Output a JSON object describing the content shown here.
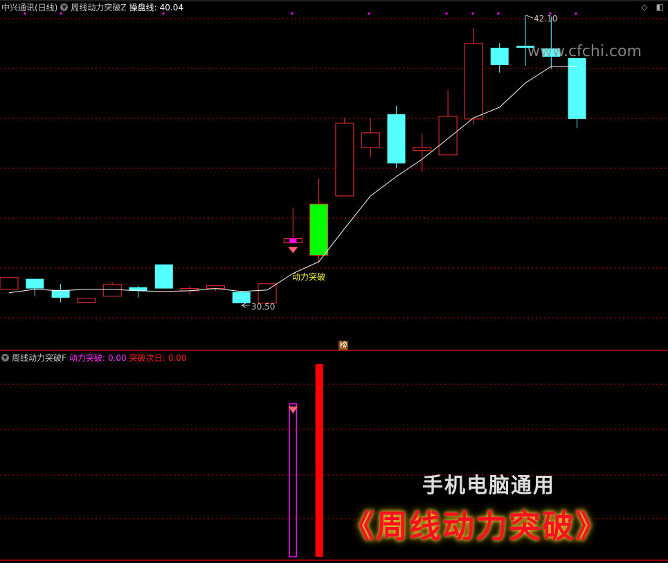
{
  "header": {
    "stock": "中兴通讯(日线)",
    "indicator": "周线动力突破Z",
    "line_label": "操盘线:",
    "line_value": "40.04"
  },
  "subpanel": {
    "indicator": "周线动力突破F",
    "signal_label": "动力突破:",
    "signal_value": "0.00",
    "next_label": "突破次日:",
    "next_value": "0.00"
  },
  "annotations": {
    "high": "42.10",
    "low": "30.50",
    "signal": "动力突破",
    "badge": "榜"
  },
  "watermark": "www.cfchi.com",
  "banner": {
    "line1": "手机电脑通用",
    "line2": "《周线动力突破》"
  },
  "colors": {
    "up": "#ff3030",
    "down": "#55ffff",
    "signal_candle": "#00ff00",
    "ma": "#ffffff",
    "grid": "#c00000",
    "signal_bar": "#ff0000",
    "signal2_bar": "#ff00ff"
  },
  "chart_data": {
    "type": "candlestick",
    "candles": [
      [
        31.06,
        31.53,
        31.06,
        31.53
      ],
      [
        31.48,
        31.48,
        30.78,
        31.09
      ],
      [
        31.03,
        31.28,
        30.53,
        30.72
      ],
      [
        30.53,
        30.7,
        30.53,
        30.7
      ],
      [
        30.78,
        31.34,
        30.78,
        31.25
      ],
      [
        31.14,
        31.2,
        30.72,
        31.0
      ],
      [
        32.06,
        32.06,
        31.09,
        31.09
      ],
      [
        31.0,
        31.2,
        30.84,
        31.09
      ],
      [
        31.09,
        31.2,
        31.0,
        31.2
      ],
      [
        30.95,
        31.0,
        30.5,
        30.5
      ],
      [
        30.5,
        31.28,
        30.5,
        31.28
      ],
      [
        32.93,
        34.35,
        32.93,
        33.1
      ],
      [
        32.43,
        35.52,
        32.12,
        34.49
      ],
      [
        34.82,
        37.97,
        34.82,
        37.75
      ],
      [
        36.77,
        37.97,
        36.38,
        37.36
      ],
      [
        38.11,
        38.45,
        35.94,
        36.13
      ],
      [
        36.64,
        37.33,
        35.8,
        36.77
      ],
      [
        36.47,
        39.09,
        36.47,
        38.03
      ],
      [
        37.92,
        41.6,
        37.69,
        40.96
      ],
      [
        40.79,
        40.98,
        39.79,
        40.09
      ],
      [
        40.87,
        42.1,
        40.06,
        40.79
      ],
      [
        40.76,
        42.05,
        39.93,
        40.43
      ],
      [
        40.37,
        40.37,
        37.56,
        37.92
      ]
    ],
    "candle_format": [
      "open",
      "high",
      "low",
      "close"
    ],
    "ma": [
      30.92,
      31.06,
      31.0,
      31.06,
      31.06,
      31.0,
      30.97,
      31.0,
      31.09,
      30.97,
      31.03,
      31.7,
      32.17,
      33.51,
      34.82,
      35.6,
      36.3,
      37.13,
      37.97,
      38.39,
      39.37,
      40.04,
      40.04
    ],
    "signal_candle_index": 12,
    "signal_marker_index": 11
  }
}
